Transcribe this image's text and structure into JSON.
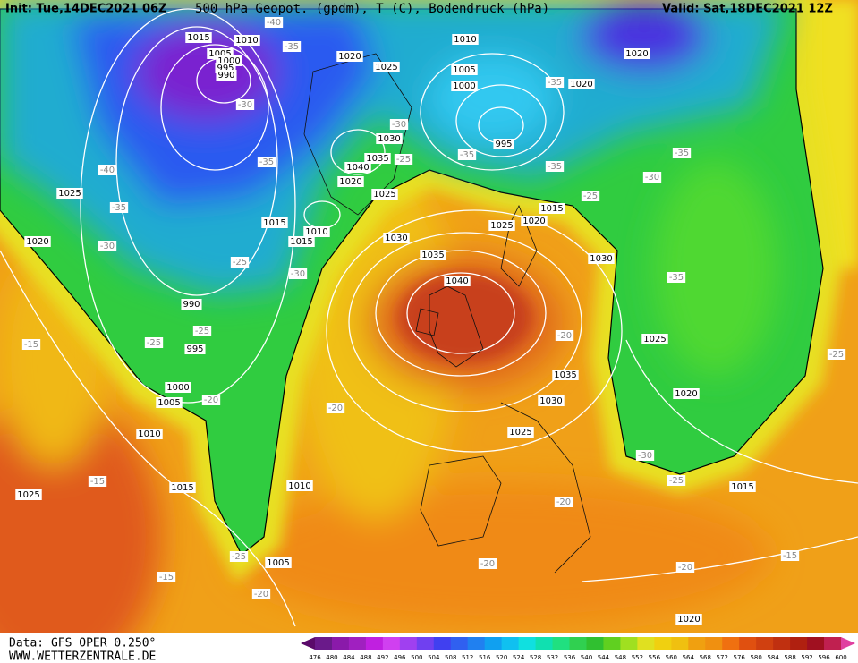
{
  "header": {
    "init": "Init: Tue,14DEC2021 06Z",
    "title": "500 hPa Geopot. (gpdm), T (C), Bodendruck (hPa)",
    "valid": "Valid: Sat,18DEC2021 12Z"
  },
  "footer": {
    "source": "Data: GFS OPER 0.250°",
    "site": "WWW.WETTERZENTRALE.DE"
  },
  "colorbar": {
    "labels": [
      476,
      480,
      484,
      488,
      492,
      496,
      500,
      504,
      508,
      512,
      516,
      520,
      524,
      528,
      532,
      536,
      540,
      544,
      548,
      552,
      556,
      560,
      564,
      568,
      572,
      576,
      580,
      584,
      588,
      592,
      596,
      600
    ],
    "colors": [
      "#5a0a6a",
      "#6a1a8a",
      "#8a1aaa",
      "#a020c0",
      "#c020e0",
      "#d040f0",
      "#a040f0",
      "#7040f0",
      "#4040f0",
      "#3060f0",
      "#2080f0",
      "#10a0f0",
      "#10c0f0",
      "#10e0e0",
      "#10e0b0",
      "#20e080",
      "#30d050",
      "#30c030",
      "#60d020",
      "#a0e020",
      "#e0e020",
      "#f0d010",
      "#f0c010",
      "#f0a010",
      "#f09010",
      "#f07010",
      "#e05010",
      "#d04010",
      "#c03010",
      "#b02010",
      "#a01020",
      "#c02050",
      "#e040a0"
    ]
  },
  "map_labels": {
    "pressure": [
      "1015",
      "1010",
      "1005",
      "1000",
      "995",
      "990",
      "1020",
      "1025",
      "1010",
      "1005",
      "1000",
      "995",
      "1020",
      "1020",
      "1030",
      "1035",
      "1040",
      "1020",
      "1025",
      "1015",
      "1010",
      "1015",
      "1030",
      "1035",
      "1040",
      "1025",
      "1020",
      "990",
      "995",
      "1000",
      "1005",
      "1010",
      "1015",
      "1025",
      "1010",
      "1005",
      "1025",
      "1020",
      "1015",
      "1030",
      "1025",
      "1020",
      "1035",
      "1030",
      "1025",
      "1015",
      "1020"
    ],
    "temperature": [
      "-40",
      "-35",
      "-30",
      "-35",
      "-40",
      "-35",
      "-30",
      "-25",
      "-30",
      "-25",
      "-25",
      "-20",
      "-30",
      "-25",
      "-35",
      "-35",
      "-35",
      "-25",
      "-30",
      "-35",
      "-35",
      "-20",
      "-20",
      "-15",
      "-15",
      "-25",
      "-15",
      "-20",
      "-20",
      "-20",
      "-20",
      "-15",
      "-30",
      "-25",
      "-25"
    ]
  }
}
